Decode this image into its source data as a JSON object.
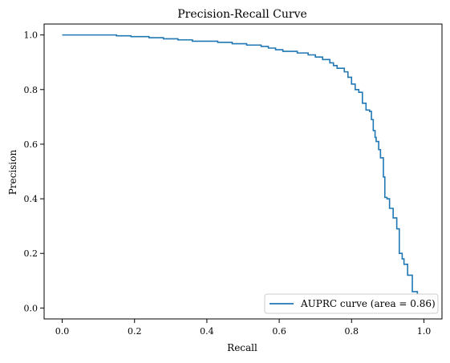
{
  "chart_data": {
    "type": "line",
    "title": "Precision-Recall Curve",
    "xlabel": "Recall",
    "ylabel": "Precision",
    "xlim": [
      -0.05,
      1.05
    ],
    "ylim": [
      -0.04,
      1.04
    ],
    "xticks": [
      0.0,
      0.2,
      0.4,
      0.6,
      0.8,
      1.0
    ],
    "yticks": [
      0.0,
      0.2,
      0.4,
      0.6,
      0.8,
      1.0
    ],
    "xtick_labels": [
      "0.0",
      "0.2",
      "0.4",
      "0.6",
      "0.8",
      "1.0"
    ],
    "ytick_labels": [
      "0.0",
      "0.2",
      "0.4",
      "0.6",
      "0.8",
      "1.0"
    ],
    "grid": false,
    "legend_position": "lower-right",
    "series": [
      {
        "name": "AUPRC curve (area = 0.86)",
        "color": "#1f77b4",
        "x": [
          0.0,
          0.15,
          0.15,
          0.19,
          0.19,
          0.24,
          0.24,
          0.28,
          0.28,
          0.32,
          0.32,
          0.36,
          0.36,
          0.43,
          0.43,
          0.47,
          0.47,
          0.51,
          0.51,
          0.55,
          0.55,
          0.57,
          0.57,
          0.59,
          0.59,
          0.61,
          0.61,
          0.65,
          0.65,
          0.68,
          0.68,
          0.7,
          0.7,
          0.72,
          0.72,
          0.74,
          0.74,
          0.75,
          0.75,
          0.76,
          0.76,
          0.78,
          0.78,
          0.79,
          0.79,
          0.8,
          0.8,
          0.81,
          0.81,
          0.82,
          0.82,
          0.83,
          0.83,
          0.84,
          0.84,
          0.85,
          0.85,
          0.855,
          0.855,
          0.86,
          0.86,
          0.865,
          0.865,
          0.868,
          0.868,
          0.875,
          0.875,
          0.88,
          0.88,
          0.888,
          0.888,
          0.892,
          0.892,
          0.898,
          0.898,
          0.905,
          0.905,
          0.915,
          0.915,
          0.925,
          0.925,
          0.932,
          0.932,
          0.94,
          0.94,
          0.945,
          0.945,
          0.955,
          0.955,
          0.968,
          0.968,
          0.982,
          0.982
        ],
        "y": [
          1.0,
          1.0,
          0.997,
          0.997,
          0.994,
          0.994,
          0.99,
          0.99,
          0.986,
          0.986,
          0.982,
          0.982,
          0.977,
          0.977,
          0.973,
          0.973,
          0.968,
          0.968,
          0.963,
          0.963,
          0.958,
          0.958,
          0.952,
          0.952,
          0.946,
          0.946,
          0.94,
          0.94,
          0.934,
          0.934,
          0.927,
          0.927,
          0.919,
          0.919,
          0.91,
          0.91,
          0.898,
          0.898,
          0.888,
          0.888,
          0.878,
          0.878,
          0.865,
          0.865,
          0.845,
          0.845,
          0.82,
          0.82,
          0.8,
          0.8,
          0.79,
          0.79,
          0.75,
          0.75,
          0.725,
          0.725,
          0.72,
          0.72,
          0.69,
          0.69,
          0.65,
          0.65,
          0.625,
          0.625,
          0.61,
          0.61,
          0.58,
          0.58,
          0.55,
          0.55,
          0.48,
          0.48,
          0.405,
          0.405,
          0.4,
          0.4,
          0.365,
          0.365,
          0.33,
          0.33,
          0.29,
          0.29,
          0.2,
          0.2,
          0.18,
          0.18,
          0.16,
          0.16,
          0.12,
          0.12,
          0.06,
          0.06,
          0.04
        ]
      }
    ]
  }
}
